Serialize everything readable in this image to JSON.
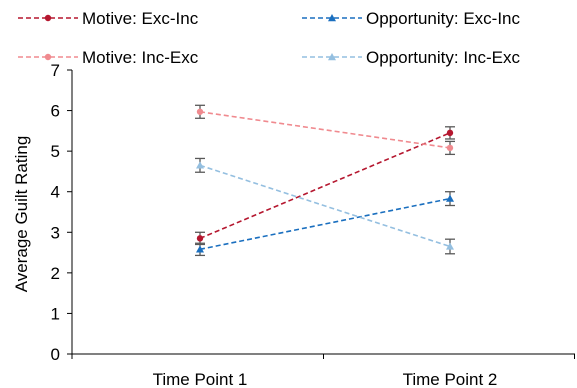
{
  "chart_data": {
    "type": "line",
    "title": "",
    "xlabel": "",
    "ylabel": "Average Guilt Rating",
    "categories": [
      "Time Point 1",
      "Time Point 2"
    ],
    "ylim": [
      0,
      7
    ],
    "yticks": [
      0,
      1,
      2,
      3,
      4,
      5,
      6,
      7
    ],
    "grid": false,
    "legend_position": "top",
    "series": [
      {
        "name": "Motive: Exc-Inc",
        "values": [
          2.85,
          5.45
        ],
        "error": [
          0.15,
          0.15
        ],
        "color": "#b5172f",
        "marker": "circle",
        "dashed": true
      },
      {
        "name": "Opportunity: Exc-Inc",
        "values": [
          2.58,
          3.83
        ],
        "error": [
          0.15,
          0.17
        ],
        "color": "#1a6fbf",
        "marker": "triangle",
        "dashed": true
      },
      {
        "name": "Motive: Inc-Exc",
        "values": [
          5.97,
          5.08
        ],
        "error": [
          0.16,
          0.16
        ],
        "color": "#f08a8f",
        "marker": "circle",
        "dashed": true
      },
      {
        "name": "Opportunity: Inc-Exc",
        "values": [
          4.65,
          2.65
        ],
        "error": [
          0.17,
          0.18
        ],
        "color": "#94bfe0",
        "marker": "triangle",
        "dashed": true
      }
    ],
    "error_bar_color": "#595959"
  }
}
